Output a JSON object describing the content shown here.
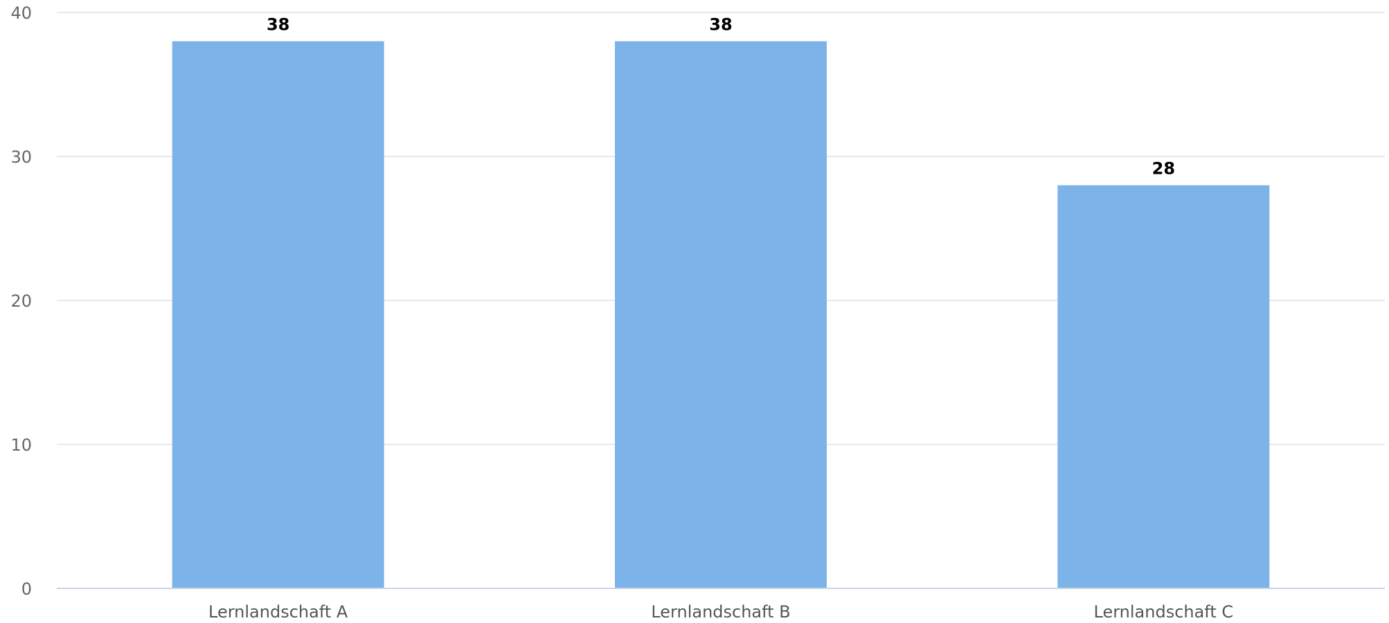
{
  "chart_data": {
    "type": "bar",
    "categories": [
      "Lernlandschaft A",
      "Lernlandschaft B",
      "Lernlandschaft C"
    ],
    "values": [
      38,
      38,
      28
    ],
    "data_labels": [
      "38",
      "38",
      "28"
    ],
    "title": "",
    "xlabel": "",
    "ylabel": "",
    "ylim": [
      0,
      40
    ],
    "yticks": [
      0,
      10,
      20,
      30,
      40
    ],
    "ytick_labels": [
      "0",
      "10",
      "20",
      "30",
      "40"
    ],
    "grid": true,
    "legend": "none",
    "bar_color": "#7cb4ea",
    "grid_color": "#dde3ea"
  }
}
